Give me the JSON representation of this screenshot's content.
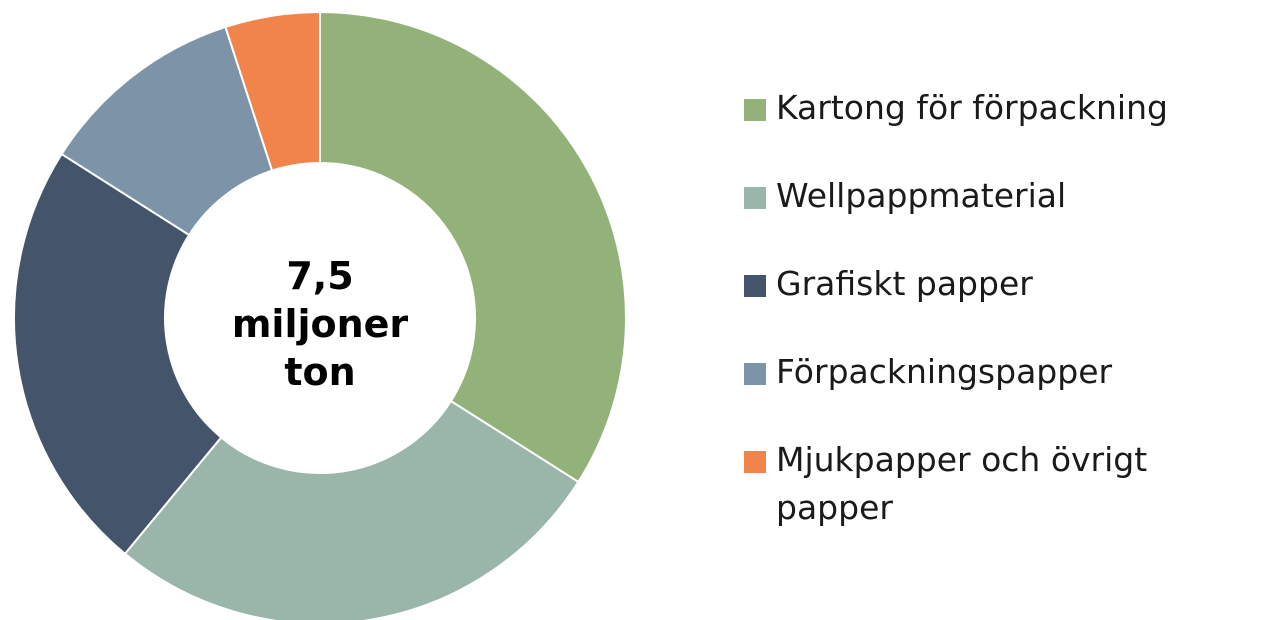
{
  "chart_data": {
    "type": "donut",
    "center_label": [
      "7,5",
      "miljoner",
      "ton"
    ],
    "categories": [
      "Kartong för förpackning",
      "Wellpappmaterial",
      "Grafiskt papper",
      "Förpackningspapper",
      "Mjukpapper och övrigt papper"
    ],
    "values": [
      34,
      27,
      23,
      11,
      5
    ],
    "colors": [
      "#93b27a",
      "#9ab5aa",
      "#44546a",
      "#7d94a8",
      "#f0844a"
    ]
  }
}
